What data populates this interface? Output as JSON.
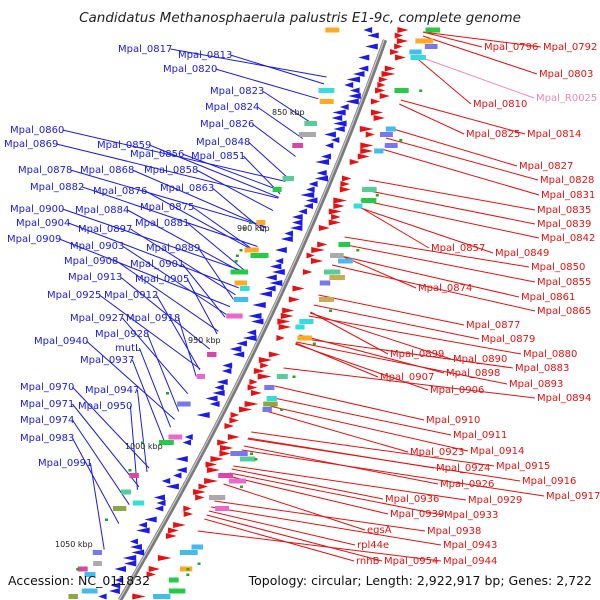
{
  "title": "Candidatus Methanosphaerula palustris E1-9c, complete genome",
  "footer": {
    "accession": "Accession: NC_011832",
    "summary": "Topology: circular; Length: 2,922,917 bp; Genes: 2,722"
  },
  "colors": {
    "forward": "#1a1aee",
    "reverse": "#e81010",
    "rna": "#ee88bb",
    "backbone": "#8a8a8a"
  },
  "kbp_ticks": [
    "850 kbp",
    "900 kbp",
    "950 kbp",
    "1000 kbp",
    "1050 kbp"
  ],
  "left_labels": [
    "Mpal_0817",
    "Mpal_0813",
    "Mpal_0820",
    "Mpal_0823",
    "Mpal_0824",
    "Mpal_0826",
    "Mpal_0860",
    "Mpal_0859",
    "Mpal_0848",
    "Mpal_0869",
    "Mpal_0856",
    "Mpal_0851",
    "Mpal_0878",
    "Mpal_0868",
    "Mpal_0858",
    "Mpal_0882",
    "Mpal_0876",
    "Mpal_0863",
    "Mpal_0875",
    "Mpal_0900",
    "Mpal_0884",
    "Mpal_0904",
    "Mpal_0897",
    "Mpal_0881",
    "Mpal_0909",
    "Mpal_0903",
    "Mpal_0889",
    "Mpal_0908",
    "Mpal_0901",
    "Mpal_0913",
    "Mpal_0905",
    "Mpal_0925",
    "Mpal_0912",
    "Mpal_0927",
    "Mpal_0918",
    "Mpal_0928",
    "Mpal_0940",
    "mutL",
    "Mpal_0937",
    "Mpal_0970",
    "Mpal_0947",
    "Mpal_0971",
    "Mpal_0950",
    "Mpal_0974",
    "Mpal_0983",
    "Mpal_0991"
  ],
  "right_labels": [
    "Mpal_0796",
    "Mpal_0792",
    "Mpal_0803",
    "Mpal_R0025",
    "Mpal_0810",
    "Mpal_0825",
    "Mpal_0814",
    "Mpal_0827",
    "Mpal_0828",
    "Mpal_0831",
    "Mpal_0835",
    "Mpal_0839",
    "Mpal_0842",
    "Mpal_0857",
    "Mpal_0849",
    "Mpal_0850",
    "Mpal_0874",
    "Mpal_0855",
    "Mpal_0861",
    "Mpal_0865",
    "Mpal_0877",
    "Mpal_0879",
    "Mpal_0880",
    "Mpal_0899",
    "Mpal_0890",
    "Mpal_0883",
    "Mpal_0907",
    "Mpal_0898",
    "Mpal_0893",
    "Mpal_0906",
    "Mpal_0894",
    "Mpal_0910",
    "Mpal_0911",
    "Mpal_0923",
    "Mpal_0914",
    "Mpal_0924",
    "Mpal_0915",
    "Mpal_0926",
    "Mpal_0916",
    "Mpal_0917",
    "Mpal_0936",
    "Mpal_0929",
    "Mpal_0939",
    "Mpal_0933",
    "egsA",
    "Mpal_0938",
    "rpl44e",
    "Mpal_0943",
    "rnhB",
    "Mpal_0954",
    "Mpal_0944"
  ]
}
